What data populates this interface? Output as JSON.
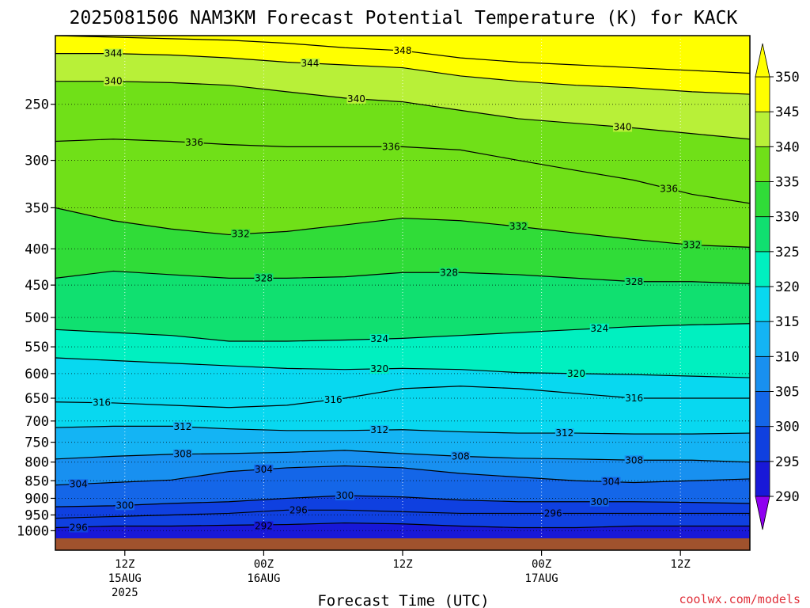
{
  "chart_data": {
    "type": "heatmap",
    "title": "2025081506 NAM3KM Forecast Potential Temperature (K) for KACK",
    "xlabel": "Forecast Time (UTC)",
    "ylabel": "",
    "y_scale": "log-pressure",
    "y_ticks": [
      250,
      300,
      350,
      400,
      450,
      500,
      550,
      600,
      650,
      700,
      750,
      800,
      850,
      900,
      950,
      1000
    ],
    "ylim": [
      200,
      1025
    ],
    "x_ticks": [
      {
        "hour": 6,
        "line1": "12Z",
        "line2": "15AUG",
        "line3": "2025"
      },
      {
        "hour": 18,
        "line1": "00Z",
        "line2": "16AUG",
        "line3": ""
      },
      {
        "hour": 30,
        "line1": "12Z",
        "line2": "",
        "line3": ""
      },
      {
        "hour": 42,
        "line1": "00Z",
        "line2": "17AUG",
        "line3": ""
      },
      {
        "hour": 54,
        "line1": "12Z",
        "line2": "",
        "line3": ""
      }
    ],
    "xlim": [
      0,
      60
    ],
    "grid": true,
    "colorbar": {
      "ticks": [
        290,
        295,
        300,
        305,
        310,
        315,
        320,
        325,
        330,
        335,
        340,
        345,
        350
      ],
      "colors": [
        "#8f00f0",
        "#5020e8",
        "#1818d8",
        "#0f40e0",
        "#1466e8",
        "#1890f0",
        "#14b4f4",
        "#08d8f0",
        "#00f0c0",
        "#10e070",
        "#30dc38",
        "#70e018",
        "#b8f038",
        "#ffff00"
      ]
    },
    "contour_interval": 4,
    "contours": [
      {
        "theta": 296,
        "pressure": [
          960,
          955,
          950,
          945,
          935,
          935,
          940,
          945,
          945,
          945,
          945,
          945,
          945
        ]
      },
      {
        "theta": 300,
        "pressure": [
          925,
          922,
          915,
          910,
          900,
          892,
          896,
          905,
          910,
          910,
          910,
          912,
          915
        ]
      },
      {
        "theta": 304,
        "pressure": [
          862,
          855,
          848,
          825,
          815,
          810,
          815,
          830,
          840,
          850,
          855,
          850,
          845
        ]
      },
      {
        "theta": 308,
        "pressure": [
          792,
          785,
          780,
          778,
          775,
          770,
          778,
          785,
          790,
          792,
          795,
          795,
          800
        ]
      },
      {
        "theta": 312,
        "pressure": [
          715,
          712,
          712,
          718,
          722,
          722,
          720,
          725,
          728,
          728,
          730,
          730,
          728
        ]
      },
      {
        "theta": 316,
        "pressure": [
          658,
          660,
          665,
          670,
          665,
          650,
          630,
          625,
          630,
          640,
          650,
          650,
          650
        ]
      },
      {
        "theta": 320,
        "pressure": [
          570,
          575,
          580,
          585,
          590,
          592,
          590,
          592,
          598,
          600,
          602,
          605,
          608
        ]
      },
      {
        "theta": 324,
        "pressure": [
          520,
          525,
          530,
          540,
          540,
          538,
          535,
          530,
          525,
          520,
          515,
          512,
          510
        ]
      },
      {
        "theta": 328,
        "pressure": [
          440,
          430,
          435,
          440,
          440,
          438,
          432,
          432,
          435,
          440,
          445,
          445,
          448
        ]
      },
      {
        "theta": 332,
        "pressure": [
          350,
          365,
          375,
          382,
          378,
          370,
          362,
          365,
          372,
          380,
          388,
          395,
          398
        ]
      },
      {
        "theta": 336,
        "pressure": [
          282,
          280,
          282,
          285,
          287,
          287,
          287,
          290,
          300,
          310,
          320,
          335,
          345
        ]
      },
      {
        "theta": 340,
        "pressure": [
          232,
          232,
          233,
          235,
          240,
          245,
          248,
          255,
          262,
          266,
          270,
          275,
          280
        ]
      },
      {
        "theta": 344,
        "pressure": [
          212,
          212,
          213,
          215,
          218,
          220,
          222,
          228,
          232,
          235,
          237,
          240,
          242
        ]
      },
      {
        "theta": 348,
        "pressure": [
          200,
          201,
          202,
          203,
          205,
          208,
          210,
          215,
          218,
          220,
          222,
          224,
          226
        ]
      }
    ],
    "contour_hours": [
      0,
      5,
      10,
      15,
      20,
      25,
      30,
      35,
      40,
      45,
      50,
      55,
      60
    ],
    "labeled_contours": [
      {
        "theta": 344,
        "hour": 5
      },
      {
        "theta": 344,
        "hour": 22
      },
      {
        "theta": 348,
        "hour": 30
      },
      {
        "theta": 340,
        "hour": 5
      },
      {
        "theta": 340,
        "hour": 26
      },
      {
        "theta": 340,
        "hour": 49
      },
      {
        "theta": 336,
        "hour": 12
      },
      {
        "theta": 336,
        "hour": 29
      },
      {
        "theta": 336,
        "hour": 53
      },
      {
        "theta": 332,
        "hour": 16
      },
      {
        "theta": 332,
        "hour": 40
      },
      {
        "theta": 332,
        "hour": 55
      },
      {
        "theta": 328,
        "hour": 18
      },
      {
        "theta": 328,
        "hour": 34
      },
      {
        "theta": 328,
        "hour": 50
      },
      {
        "theta": 324,
        "hour": 28
      },
      {
        "theta": 324,
        "hour": 47
      },
      {
        "theta": 320,
        "hour": 28
      },
      {
        "theta": 320,
        "hour": 45
      },
      {
        "theta": 316,
        "hour": 4
      },
      {
        "theta": 316,
        "hour": 24
      },
      {
        "theta": 316,
        "hour": 50
      },
      {
        "theta": 312,
        "hour": 11
      },
      {
        "theta": 312,
        "hour": 28
      },
      {
        "theta": 312,
        "hour": 44
      },
      {
        "theta": 308,
        "hour": 11
      },
      {
        "theta": 308,
        "hour": 35
      },
      {
        "theta": 308,
        "hour": 50
      },
      {
        "theta": 304,
        "hour": 2
      },
      {
        "theta": 304,
        "hour": 18
      },
      {
        "theta": 304,
        "hour": 48
      },
      {
        "theta": 300,
        "hour": 6
      },
      {
        "theta": 300,
        "hour": 25
      },
      {
        "theta": 300,
        "hour": 47
      },
      {
        "theta": 296,
        "hour": 21
      },
      {
        "theta": 296,
        "hour": 43
      },
      {
        "theta": 296,
        "hour": 2
      },
      {
        "theta": 292,
        "hour": 18
      }
    ],
    "near_surface_labels": [
      {
        "text": "296",
        "hour": 2,
        "pressure": 990
      },
      {
        "text": "292",
        "hour": 18,
        "pressure": 985
      }
    ]
  },
  "credit": "coolwx.com/models"
}
